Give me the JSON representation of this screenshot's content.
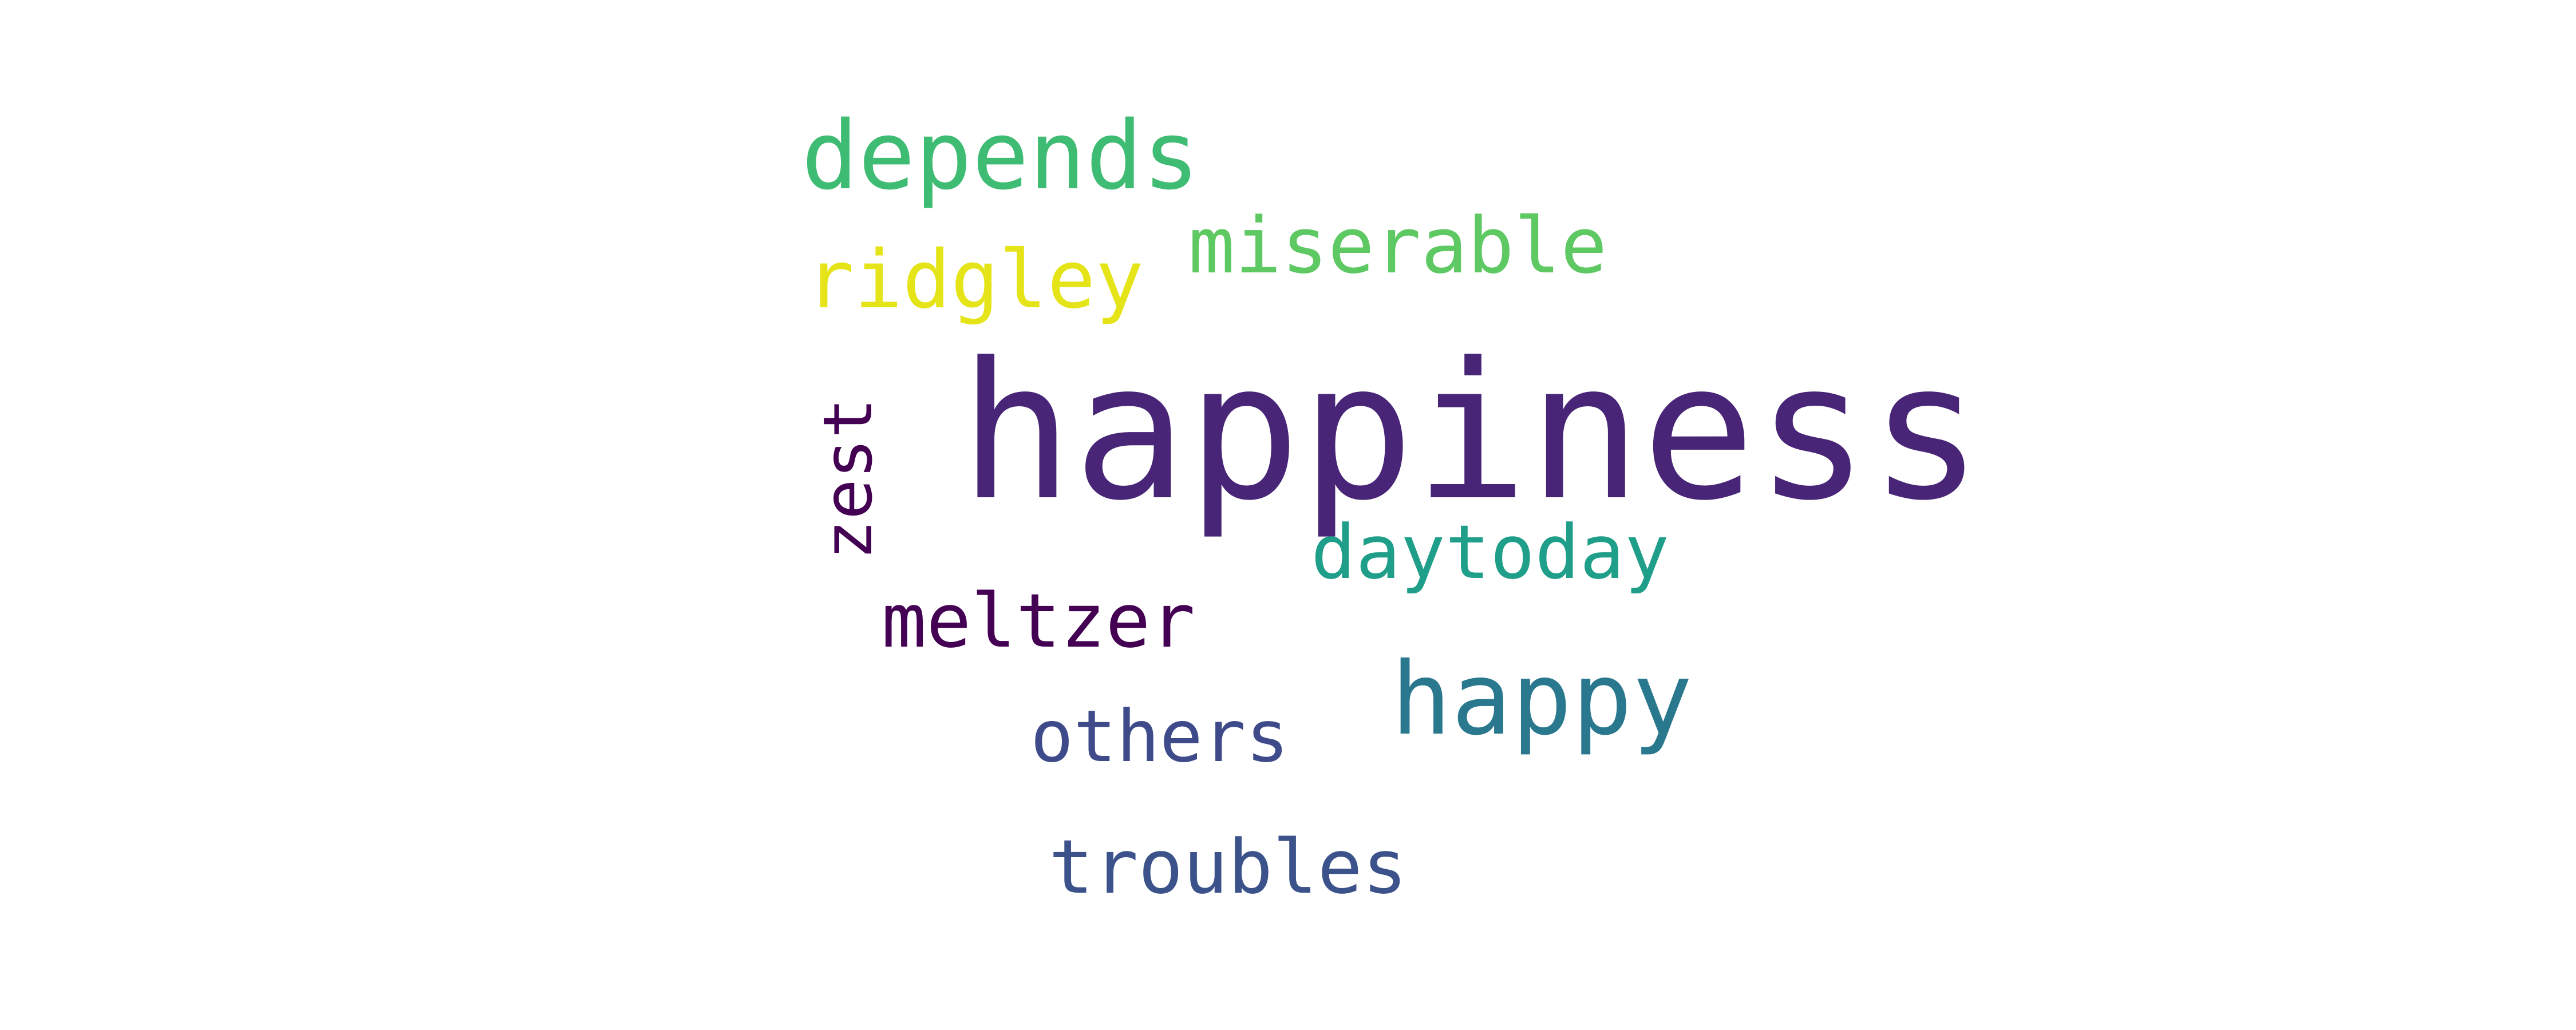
{
  "words": [
    {
      "key": "happiness",
      "text": "happiness",
      "color": "#482576"
    },
    {
      "key": "depends",
      "text": "depends",
      "color": "#3fbc73"
    },
    {
      "key": "miserable",
      "text": "miserable",
      "color": "#5ec962"
    },
    {
      "key": "ridgley",
      "text": "ridgley",
      "color": "#e5e419"
    },
    {
      "key": "zest",
      "text": "zest",
      "color": "#440154"
    },
    {
      "key": "daytoday",
      "text": "daytoday",
      "color": "#1f9e89"
    },
    {
      "key": "meltzer",
      "text": "meltzer",
      "color": "#440154"
    },
    {
      "key": "happy",
      "text": "happy",
      "color": "#2a788e"
    },
    {
      "key": "others",
      "text": "others",
      "color": "#3e4a89"
    },
    {
      "key": "troubles",
      "text": "troubles",
      "color": "#3b528b"
    }
  ]
}
